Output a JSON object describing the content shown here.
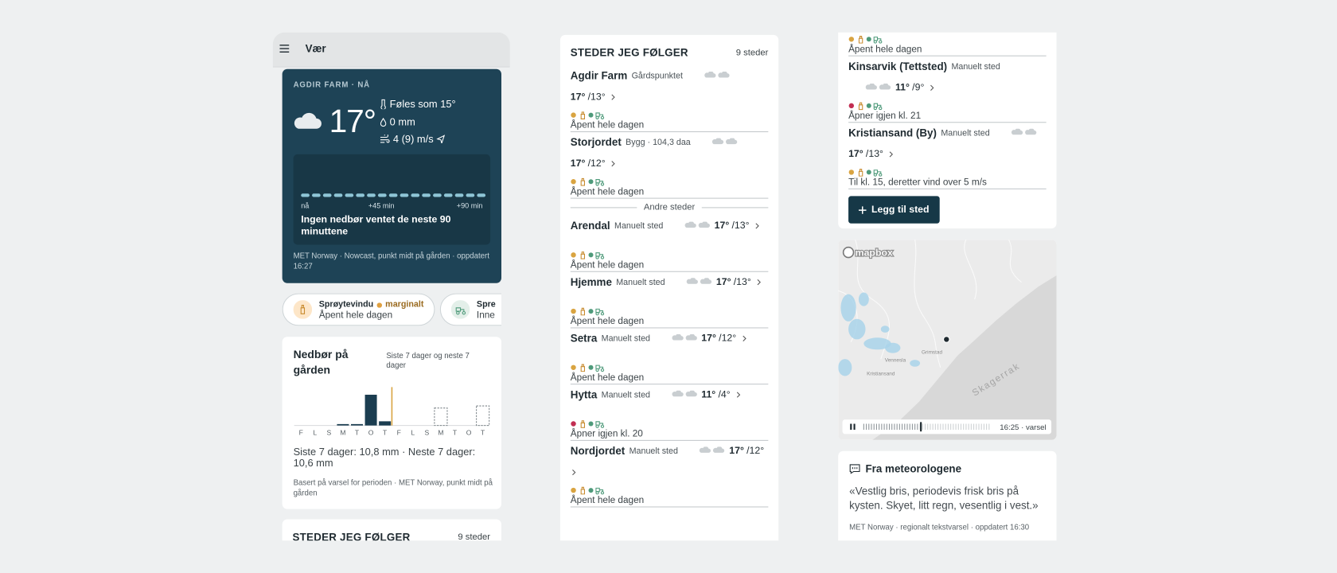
{
  "app": {
    "title": "Vær"
  },
  "weather": {
    "label": "AGDIR FARM · NÅ",
    "temp": "17°",
    "feels": "Føles som 15°",
    "precip": "0 mm",
    "wind": "4 (9) m/s",
    "nowcast": {
      "values": [
        0,
        0,
        0,
        0,
        0,
        0,
        0,
        0,
        0,
        0,
        0,
        0,
        0,
        0,
        0,
        0,
        0
      ],
      "color": "#8ec5d6",
      "labels": [
        "nå",
        "+45 min",
        "+90 min"
      ],
      "message": "Ingen nedbør ventet de neste 90 minuttene"
    },
    "source": "MET Norway · Nowcast, punkt midt på gården · oppdatert 16:27"
  },
  "chips": [
    {
      "title": "Sprøytevindu",
      "level": "marginalt",
      "text": "Åpent hele dagen"
    },
    {
      "title": "Spre",
      "text": "Inne"
    }
  ],
  "precip": {
    "title": "Nedbør på gården",
    "subtitle": "Siste 7 dager og neste 7 dager",
    "categories": [
      "F",
      "L",
      "S",
      "M",
      "T",
      "O",
      "T",
      "F",
      "L",
      "S",
      "M",
      "T",
      "O",
      "T"
    ],
    "past": [
      0,
      0,
      0,
      0.4,
      0.4,
      8.8,
      1.2
    ],
    "forecast": [
      0,
      0,
      0,
      5,
      0,
      0,
      5.6
    ],
    "color": "#1b3d50",
    "summary": "Siste 7 dager: 10,8 mm · Neste 7 dager: 10,6 mm",
    "source": "Basert på varsel for perioden · MET Norway, punkt midt på gården"
  },
  "places_preview": {
    "title": "STEDER JEG FØLGER",
    "count": "9 steder"
  },
  "places": {
    "title": "STEDER JEG FØLGER",
    "count": "9 steder",
    "groups": [
      {
        "items": [
          {
            "name": "Agdir Farm",
            "sub": "Gårdspunktet",
            "hi": "17°",
            "lo": "/13°",
            "status": "Åpent hele dagen",
            "dot": "#d9a441"
          },
          {
            "name": "Storjordet",
            "sub": "Bygg · 104,3 daa",
            "hi": "17°",
            "lo": "/12°",
            "status": "Åpent hele dagen",
            "dot": "#d9a441"
          }
        ]
      },
      {
        "label": "Andre steder",
        "items": [
          {
            "name": "Arendal",
            "sub": "Manuelt sted",
            "hi": "17°",
            "lo": "/13°",
            "status": "Åpent hele dagen",
            "dot": "#d9a441"
          },
          {
            "name": "Hjemme",
            "sub": "Manuelt sted",
            "hi": "17°",
            "lo": "/13°",
            "status": "Åpent hele dagen",
            "dot": "#d9a441"
          },
          {
            "name": "Setra",
            "sub": "Manuelt sted",
            "hi": "17°",
            "lo": "/12°",
            "status": "Åpent hele dagen",
            "dot": "#d9a441"
          },
          {
            "name": "Hytta",
            "sub": "Manuelt sted",
            "hi": "11°",
            "lo": "/4°",
            "status": "Åpner igjen kl. 20",
            "dot": "#c22e52"
          },
          {
            "name": "Nordjordet",
            "sub": "Manuelt sted",
            "hi": "17°",
            "lo": "/12°",
            "status": "Åpent hele dagen",
            "dot": "#d9a441"
          }
        ]
      }
    ]
  },
  "places_more": {
    "fragment": {
      "status": "Åpent hele dagen",
      "dot": "#d9a441"
    },
    "items": [
      {
        "name": "Kinsarvik (Tettsted)",
        "sub": "Manuelt sted",
        "hi": "11°",
        "lo": "/9°",
        "status": "Åpner igjen kl. 21",
        "dot": "#c22e52"
      },
      {
        "name": "Kristiansand (By)",
        "sub": "Manuelt sted",
        "hi": "17°",
        "lo": "/13°",
        "status": "Til kl. 15, deretter vind over 5 m/s",
        "dot": "#d9a441"
      }
    ],
    "button": "Legg til sted"
  },
  "map": {
    "attribution": "mapbox",
    "labels": [
      "Skagerrak",
      "Vennesla",
      "Kristiansand",
      "Grimstad"
    ],
    "time": "16:25 · varsel"
  },
  "forecaster": {
    "title": "Fra meteorologene",
    "text": "«Vestlig bris, periodevis frisk bris på kysten. Skyet, litt regn, vesentlig i vest.»",
    "source": "MET Norway · regionalt tekstvarsel · oppdatert 16:30"
  }
}
